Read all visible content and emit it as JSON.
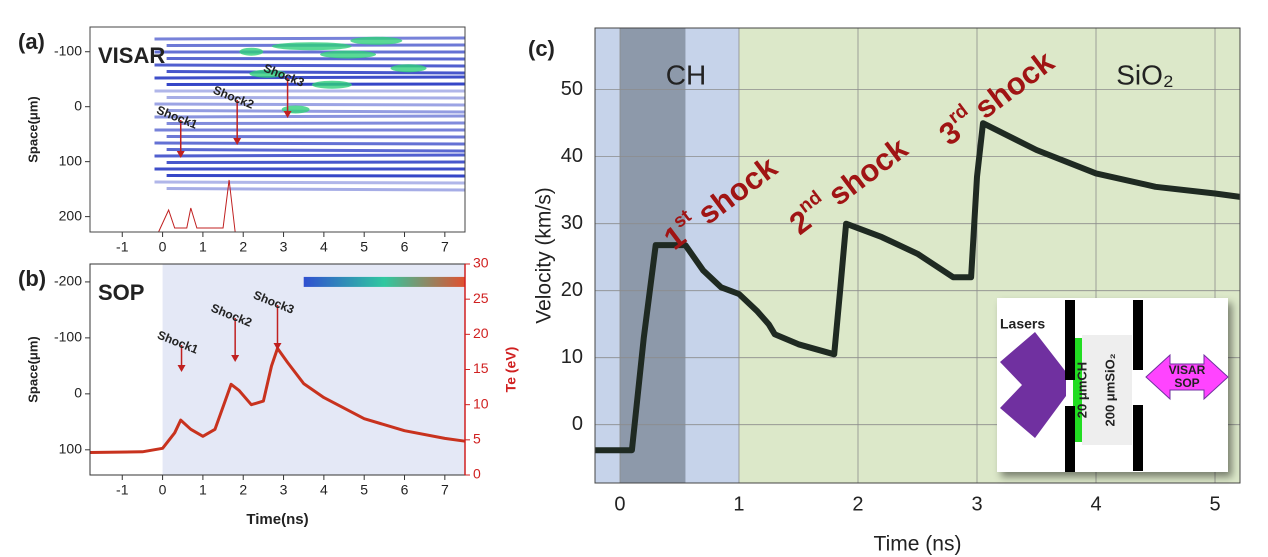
{
  "chart_data": [
    {
      "type": "image",
      "label": "(a)",
      "title": "VISAR",
      "ylabel": "Space(μm)",
      "xlim": [
        -1.8,
        7.5
      ],
      "ylim": [
        228,
        -145
      ],
      "xticks": [
        -1,
        0,
        1,
        2,
        3,
        4,
        5,
        6,
        7
      ],
      "yticks": [
        -100,
        0,
        100,
        200
      ],
      "annotations": [
        {
          "text": "Shock1",
          "x": 0.45
        },
        {
          "text": "Shock2",
          "x": 1.85
        },
        {
          "text": "Shock3",
          "x": 3.1
        }
      ]
    },
    {
      "type": "line",
      "label": "(b)",
      "title": "SOP",
      "xlabel": "Time(ns)",
      "ylabel": "Space(μm)",
      "y2label": "Te (eV)",
      "xlim": [
        -1.8,
        7.5
      ],
      "ylim": [
        145,
        -232
      ],
      "y2lim": [
        0,
        30
      ],
      "xticks": [
        -1,
        0,
        1,
        2,
        3,
        4,
        5,
        6,
        7
      ],
      "yticks": [
        -200,
        -100,
        0,
        100
      ],
      "y2ticks": [
        0,
        5,
        10,
        15,
        20,
        25,
        30
      ],
      "x": [
        -1.8,
        -0.5,
        0,
        0.3,
        0.45,
        0.7,
        1.0,
        1.3,
        1.55,
        1.7,
        1.9,
        2.2,
        2.5,
        2.7,
        2.85,
        3.1,
        3.5,
        4,
        5,
        6,
        7,
        7.5
      ],
      "series": [
        {
          "color": "#c8321e",
          "axis": "y2",
          "values": [
            3.2,
            3.3,
            3.8,
            6,
            7.8,
            6.5,
            5.5,
            6.5,
            10.5,
            12.9,
            12,
            10,
            10.5,
            15.5,
            18,
            16,
            13,
            11,
            8,
            6.3,
            5.2,
            4.8
          ]
        }
      ],
      "annotations": [
        {
          "text": "Shock1",
          "x": 0.47
        },
        {
          "text": "Shock2",
          "x": 1.8
        },
        {
          "text": "Shock3",
          "x": 2.85
        }
      ]
    },
    {
      "type": "line",
      "label": "(c)",
      "xlabel": "Time (ns)",
      "ylabel": "Velocity (km/s)",
      "xlim": [
        -0.21,
        5.21
      ],
      "ylim": [
        -8.7,
        59.2
      ],
      "grid": true,
      "xticks": [
        0,
        1,
        2,
        3,
        4,
        5
      ],
      "yticks": [
        0,
        10,
        20,
        30,
        40,
        50
      ],
      "regions": [
        {
          "x0": -0.21,
          "x1": 1,
          "color": "#c6d3ea",
          "text": "CH"
        },
        {
          "x0": 0,
          "x1": 0.55,
          "color": "#8d99aa"
        },
        {
          "x0": 1,
          "x1": 5.21,
          "color": "#dce8c9",
          "text": "SiO₂"
        }
      ],
      "x": [
        -0.21,
        0.1,
        0.2,
        0.3,
        0.55,
        0.7,
        0.85,
        1.0,
        1.15,
        1.25,
        1.3,
        1.5,
        1.8,
        1.85,
        1.9,
        2.2,
        2.5,
        2.8,
        2.95,
        3.0,
        3.05,
        3.5,
        4.0,
        4.5,
        5.0,
        5.21
      ],
      "series": [
        {
          "color": "#1f2a22",
          "values": [
            -3.8,
            -3.8,
            13,
            26.8,
            26.8,
            23,
            20.5,
            19.5,
            17,
            15,
            13.5,
            12,
            10.5,
            20,
            30,
            28,
            25.5,
            22,
            22,
            37,
            45,
            41,
            37.5,
            35.5,
            34.5,
            34
          ]
        }
      ],
      "shocks": [
        {
          "num": "1",
          "sup": "st",
          "word": "shock"
        },
        {
          "num": "2",
          "sup": "nd",
          "word": "shock"
        },
        {
          "num": "3",
          "sup": "rd",
          "word": "shock"
        }
      ],
      "inset": {
        "lasers": "Lasers",
        "ch": "20 μmCH",
        "sio2": "200 μmSiO₂",
        "diag": [
          "VISAR",
          "SOP"
        ]
      }
    }
  ]
}
